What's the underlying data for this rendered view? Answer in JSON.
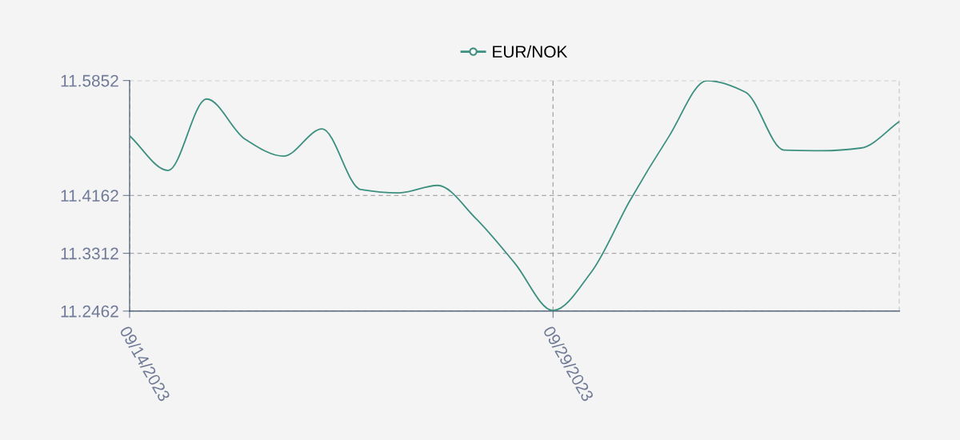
{
  "chart_data": {
    "type": "line",
    "categories": [
      "09/14/2023",
      null,
      null,
      null,
      null,
      null,
      null,
      null,
      null,
      null,
      null,
      "09/29/2023",
      null,
      null,
      null,
      null,
      null,
      null,
      null,
      null,
      null
    ],
    "series": [
      {
        "name": "EUR/NOK",
        "color": "#3d9080",
        "values": [
          11.504,
          11.453,
          11.558,
          11.499,
          11.474,
          11.514,
          11.425,
          11.42,
          11.431,
          11.382,
          11.317,
          11.247,
          11.304,
          11.409,
          11.502,
          11.585,
          11.568,
          11.483,
          11.482,
          11.486,
          11.525
        ]
      }
    ],
    "ylim": [
      11.2462,
      11.5852
    ],
    "yticks": [
      11.2462,
      11.3312,
      11.4162,
      11.5852
    ],
    "grid": true,
    "legend": "top",
    "marker": "none",
    "line_style": "solid"
  }
}
